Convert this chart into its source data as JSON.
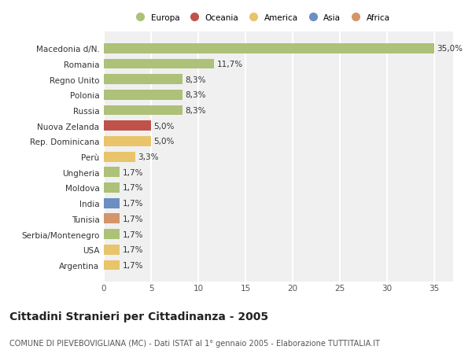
{
  "categories": [
    "Macedonia d/N.",
    "Romania",
    "Regno Unito",
    "Polonia",
    "Russia",
    "Nuova Zelanda",
    "Rep. Dominicana",
    "Perù",
    "Ungheria",
    "Moldova",
    "India",
    "Tunisia",
    "Serbia/Montenegro",
    "USA",
    "Argentina"
  ],
  "values": [
    35.0,
    11.7,
    8.3,
    8.3,
    8.3,
    5.0,
    5.0,
    3.3,
    1.7,
    1.7,
    1.7,
    1.7,
    1.7,
    1.7,
    1.7
  ],
  "labels": [
    "35,0%",
    "11,7%",
    "8,3%",
    "8,3%",
    "8,3%",
    "5,0%",
    "5,0%",
    "3,3%",
    "1,7%",
    "1,7%",
    "1,7%",
    "1,7%",
    "1,7%",
    "1,7%",
    "1,7%"
  ],
  "colors": [
    "#adc178",
    "#adc178",
    "#adc178",
    "#adc178",
    "#adc178",
    "#c0524a",
    "#e8c46a",
    "#e8c46a",
    "#adc178",
    "#adc178",
    "#6a8fc0",
    "#d4956a",
    "#adc178",
    "#e8c46a",
    "#e8c46a"
  ],
  "legend_labels": [
    "Europa",
    "Oceania",
    "America",
    "Asia",
    "Africa"
  ],
  "legend_colors": [
    "#adc178",
    "#c0524a",
    "#e8c46a",
    "#6a8fc0",
    "#d4956a"
  ],
  "xlim": [
    0,
    37
  ],
  "xticks": [
    0,
    5,
    10,
    15,
    20,
    25,
    30,
    35
  ],
  "title": "Cittadini Stranieri per Cittadinanza - 2005",
  "subtitle": "COMUNE DI PIEVEBOVIGLIANA (MC) - Dati ISTAT al 1° gennaio 2005 - Elaborazione TUTTITALIA.IT",
  "background_color": "#ffffff",
  "plot_bg_color": "#f0f0f0",
  "grid_color": "#ffffff",
  "bar_height": 0.65,
  "label_fontsize": 7.5,
  "tick_fontsize": 7.5,
  "title_fontsize": 10,
  "subtitle_fontsize": 7
}
